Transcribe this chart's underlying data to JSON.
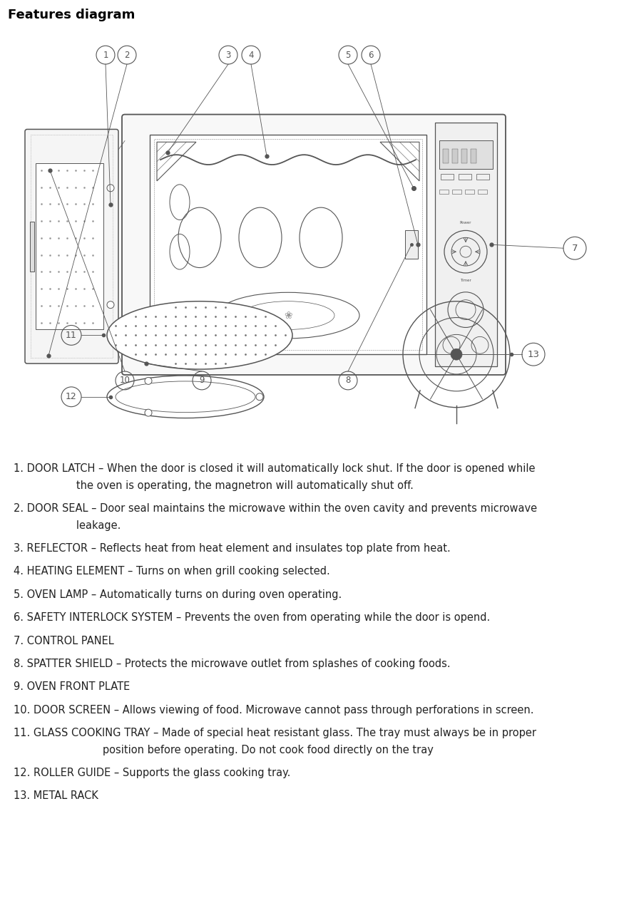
{
  "title": "Features diagram",
  "title_bg": "#cccccc",
  "title_fontsize": 13,
  "text_fontsize": 10.5,
  "fig_width": 8.82,
  "fig_height": 12.6,
  "line_color": "#555555",
  "text_color": "#222222",
  "descriptions": [
    [
      "1. DOOR LATCH – When the door is closed it will automatically lock shut. If the door is opened while",
      "                   the oven is operating, the magnetron will automatically shut off."
    ],
    [
      "2. DOOR SEAL – Door seal maintains the microwave within the oven cavity and prevents microwave",
      "                   leakage."
    ],
    [
      "3. REFLECTOR – Reflects heat from heat element and insulates top plate from heat."
    ],
    [
      "4. HEATING ELEMENT – Turns on when grill cooking selected."
    ],
    [
      "5. OVEN LAMP – Automatically turns on during oven operating."
    ],
    [
      "6. SAFETY INTERLOCK SYSTEM – Prevents the oven from operating while the door is opend."
    ],
    [
      "7. CONTROL PANEL"
    ],
    [
      "8. SPATTER SHIELD – Protects the microwave outlet from splashes of cooking foods."
    ],
    [
      "9. OVEN FRONT PLATE"
    ],
    [
      "10. DOOR SCREEN – Allows viewing of food. Microwave cannot pass through perforations in screen."
    ],
    [
      "11. GLASS COOKING TRAY – Made of special heat resistant glass. The tray must always be in proper",
      "                           position before operating. Do not cook food directly on the tray"
    ],
    [
      "12. ROLLER GUIDE – Supports the glass cooking tray."
    ],
    [
      "13. METAL RACK"
    ]
  ]
}
